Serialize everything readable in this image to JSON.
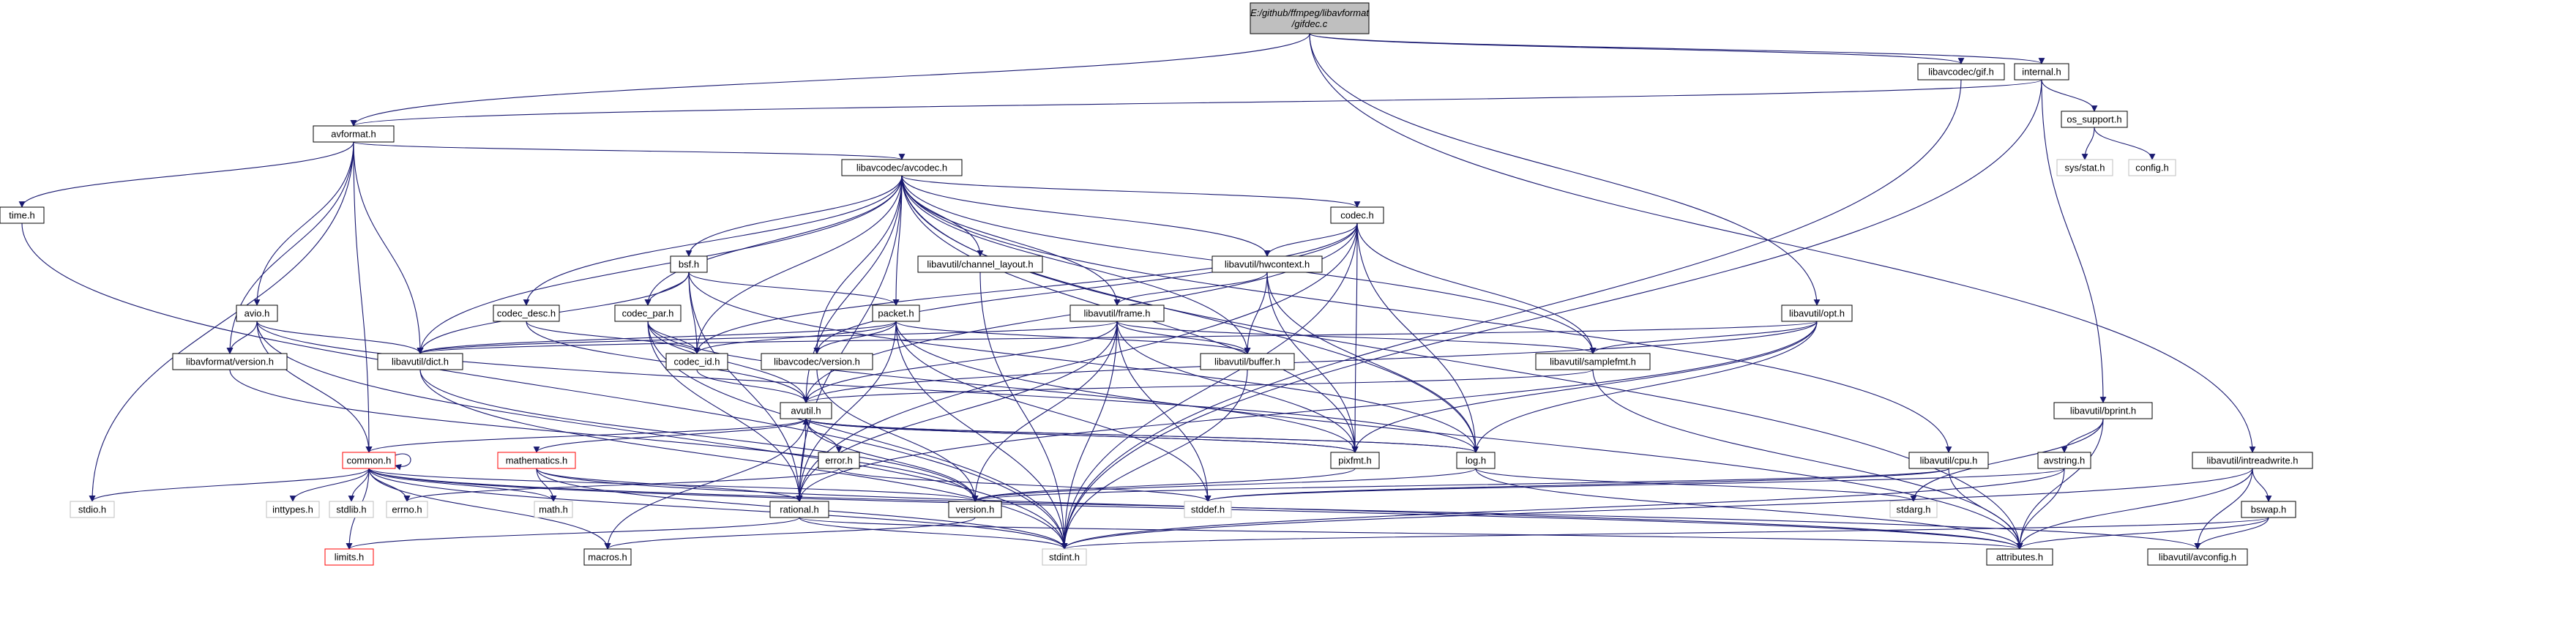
{
  "diagram": {
    "kind": "doxygen include dependency graph",
    "root": "gifdec",
    "edge_color": "#191970",
    "nodes": [
      {
        "id": "gifdec",
        "lines": [
          "E:/github/ffmpeg/libavformat",
          "/gifdec.c"
        ],
        "style": "root"
      },
      {
        "id": "avformat",
        "lines": [
          "avformat.h"
        ],
        "style": "normal"
      },
      {
        "id": "gifh",
        "lines": [
          "libavcodec/gif.h"
        ],
        "style": "normal"
      },
      {
        "id": "internal",
        "lines": [
          "internal.h"
        ],
        "style": "normal"
      },
      {
        "id": "os_support",
        "lines": [
          "os_support.h"
        ],
        "style": "normal"
      },
      {
        "id": "sysstat",
        "lines": [
          "sys/stat.h"
        ],
        "style": "gray"
      },
      {
        "id": "config",
        "lines": [
          "config.h"
        ],
        "style": "gray"
      },
      {
        "id": "time",
        "lines": [
          "time.h"
        ],
        "style": "normal"
      },
      {
        "id": "avcodec",
        "lines": [
          "libavcodec/avcodec.h"
        ],
        "style": "normal"
      },
      {
        "id": "codec",
        "lines": [
          "codec.h"
        ],
        "style": "normal"
      },
      {
        "id": "bsf",
        "lines": [
          "bsf.h"
        ],
        "style": "normal"
      },
      {
        "id": "chlayout",
        "lines": [
          "libavutil/channel_layout.h"
        ],
        "style": "normal"
      },
      {
        "id": "hwcontext",
        "lines": [
          "libavutil/hwcontext.h"
        ],
        "style": "normal"
      },
      {
        "id": "avio",
        "lines": [
          "avio.h"
        ],
        "style": "normal"
      },
      {
        "id": "codec_desc",
        "lines": [
          "codec_desc.h"
        ],
        "style": "normal"
      },
      {
        "id": "codec_par",
        "lines": [
          "codec_par.h"
        ],
        "style": "normal"
      },
      {
        "id": "packet",
        "lines": [
          "packet.h"
        ],
        "style": "normal"
      },
      {
        "id": "frame",
        "lines": [
          "libavutil/frame.h"
        ],
        "style": "normal"
      },
      {
        "id": "opt",
        "lines": [
          "libavutil/opt.h"
        ],
        "style": "normal"
      },
      {
        "id": "lfversion",
        "lines": [
          "libavformat/version.h"
        ],
        "style": "normal"
      },
      {
        "id": "dict",
        "lines": [
          "libavutil/dict.h"
        ],
        "style": "normal"
      },
      {
        "id": "codec_id",
        "lines": [
          "codec_id.h"
        ],
        "style": "normal"
      },
      {
        "id": "lcversion",
        "lines": [
          "libavcodec/version.h"
        ],
        "style": "normal"
      },
      {
        "id": "buffer",
        "lines": [
          "libavutil/buffer.h"
        ],
        "style": "normal"
      },
      {
        "id": "samplefmt",
        "lines": [
          "libavutil/samplefmt.h"
        ],
        "style": "normal"
      },
      {
        "id": "bprint",
        "lines": [
          "libavutil/bprint.h"
        ],
        "style": "normal"
      },
      {
        "id": "intreadwrite",
        "lines": [
          "libavutil/intreadwrite.h"
        ],
        "style": "normal"
      },
      {
        "id": "avutil",
        "lines": [
          "avutil.h"
        ],
        "style": "normal"
      },
      {
        "id": "common",
        "lines": [
          "common.h"
        ],
        "style": "red"
      },
      {
        "id": "mathematics",
        "lines": [
          "mathematics.h"
        ],
        "style": "red"
      },
      {
        "id": "error",
        "lines": [
          "error.h"
        ],
        "style": "normal"
      },
      {
        "id": "pixfmt",
        "lines": [
          "pixfmt.h"
        ],
        "style": "normal"
      },
      {
        "id": "log",
        "lines": [
          "log.h"
        ],
        "style": "normal"
      },
      {
        "id": "cpu",
        "lines": [
          "libavutil/cpu.h"
        ],
        "style": "normal"
      },
      {
        "id": "avstring",
        "lines": [
          "avstring.h"
        ],
        "style": "normal"
      },
      {
        "id": "stdio",
        "lines": [
          "stdio.h"
        ],
        "style": "gray"
      },
      {
        "id": "inttypes",
        "lines": [
          "inttypes.h"
        ],
        "style": "gray"
      },
      {
        "id": "stdlib",
        "lines": [
          "stdlib.h"
        ],
        "style": "gray"
      },
      {
        "id": "errno",
        "lines": [
          "errno.h"
        ],
        "style": "gray"
      },
      {
        "id": "math",
        "lines": [
          "math.h"
        ],
        "style": "gray"
      },
      {
        "id": "rational",
        "lines": [
          "rational.h"
        ],
        "style": "normal"
      },
      {
        "id": "version",
        "lines": [
          "version.h"
        ],
        "style": "normal"
      },
      {
        "id": "stddef",
        "lines": [
          "stddef.h"
        ],
        "style": "gray"
      },
      {
        "id": "stdarg",
        "lines": [
          "stdarg.h"
        ],
        "style": "gray"
      },
      {
        "id": "bswap",
        "lines": [
          "bswap.h"
        ],
        "style": "normal"
      },
      {
        "id": "limits",
        "lines": [
          "limits.h"
        ],
        "style": "red"
      },
      {
        "id": "macros",
        "lines": [
          "macros.h"
        ],
        "style": "normal"
      },
      {
        "id": "stdint",
        "lines": [
          "stdint.h"
        ],
        "style": "gray"
      },
      {
        "id": "attributes",
        "lines": [
          "attributes.h"
        ],
        "style": "normal"
      },
      {
        "id": "avconfig",
        "lines": [
          "libavutil/avconfig.h"
        ],
        "style": "normal"
      }
    ],
    "edges": [
      [
        "gifdec",
        "avformat"
      ],
      [
        "gifdec",
        "gifh"
      ],
      [
        "gifdec",
        "internal"
      ],
      [
        "gifdec",
        "opt"
      ],
      [
        "gifdec",
        "intreadwrite"
      ],
      [
        "internal",
        "avformat"
      ],
      [
        "internal",
        "os_support"
      ],
      [
        "internal",
        "bprint"
      ],
      [
        "internal",
        "stdint"
      ],
      [
        "os_support",
        "sysstat"
      ],
      [
        "os_support",
        "config"
      ],
      [
        "gifh",
        "stdint"
      ],
      [
        "avformat",
        "time"
      ],
      [
        "avformat",
        "stdio"
      ],
      [
        "avformat",
        "avcodec"
      ],
      [
        "avformat",
        "avio"
      ],
      [
        "avformat",
        "lfversion"
      ],
      [
        "avformat",
        "dict"
      ],
      [
        "avformat",
        "common"
      ],
      [
        "time",
        "stdint"
      ],
      [
        "avcodec",
        "codec"
      ],
      [
        "avcodec",
        "bsf"
      ],
      [
        "avcodec",
        "chlayout"
      ],
      [
        "avcodec",
        "hwcontext"
      ],
      [
        "avcodec",
        "codec_desc"
      ],
      [
        "avcodec",
        "codec_par"
      ],
      [
        "avcodec",
        "packet"
      ],
      [
        "avcodec",
        "frame"
      ],
      [
        "avcodec",
        "dict"
      ],
      [
        "avcodec",
        "codec_id"
      ],
      [
        "avcodec",
        "lcversion"
      ],
      [
        "avcodec",
        "buffer"
      ],
      [
        "avcodec",
        "samplefmt"
      ],
      [
        "avcodec",
        "avutil"
      ],
      [
        "avcodec",
        "log"
      ],
      [
        "avcodec",
        "pixfmt"
      ],
      [
        "avcodec",
        "rational"
      ],
      [
        "avcodec",
        "cpu"
      ],
      [
        "avcodec",
        "attributes"
      ],
      [
        "codec",
        "hwcontext"
      ],
      [
        "codec",
        "lcversion"
      ],
      [
        "codec",
        "codec_id"
      ],
      [
        "codec",
        "samplefmt"
      ],
      [
        "codec",
        "avutil"
      ],
      [
        "codec",
        "log"
      ],
      [
        "codec",
        "pixfmt"
      ],
      [
        "codec",
        "rational"
      ],
      [
        "codec",
        "stdint"
      ],
      [
        "bsf",
        "codec_par"
      ],
      [
        "bsf",
        "packet"
      ],
      [
        "bsf",
        "dict"
      ],
      [
        "bsf",
        "codec_id"
      ],
      [
        "bsf",
        "log"
      ],
      [
        "bsf",
        "rational"
      ],
      [
        "chlayout",
        "stdint"
      ],
      [
        "hwcontext",
        "frame"
      ],
      [
        "hwcontext",
        "buffer"
      ],
      [
        "hwcontext",
        "pixfmt"
      ],
      [
        "hwcontext",
        "log"
      ],
      [
        "avio",
        "dict"
      ],
      [
        "avio",
        "lfversion"
      ],
      [
        "avio",
        "common"
      ],
      [
        "avio",
        "log"
      ],
      [
        "avio",
        "stdint"
      ],
      [
        "codec_desc",
        "codec_id"
      ],
      [
        "codec_desc",
        "avutil"
      ],
      [
        "codec_par",
        "codec_id"
      ],
      [
        "codec_par",
        "avutil"
      ],
      [
        "codec_par",
        "pixfmt"
      ],
      [
        "codec_par",
        "rational"
      ],
      [
        "codec_par",
        "stdint"
      ],
      [
        "packet",
        "buffer"
      ],
      [
        "packet",
        "dict"
      ],
      [
        "packet",
        "lcversion"
      ],
      [
        "packet",
        "codec_id"
      ],
      [
        "packet",
        "rational"
      ],
      [
        "packet",
        "attributes"
      ],
      [
        "packet",
        "stddef"
      ],
      [
        "packet",
        "stdint"
      ],
      [
        "frame",
        "dict"
      ],
      [
        "frame",
        "buffer"
      ],
      [
        "frame",
        "samplefmt"
      ],
      [
        "frame",
        "avutil"
      ],
      [
        "frame",
        "pixfmt"
      ],
      [
        "frame",
        "rational"
      ],
      [
        "frame",
        "version"
      ],
      [
        "frame",
        "stddef"
      ],
      [
        "frame",
        "stdint"
      ],
      [
        "opt",
        "dict"
      ],
      [
        "opt",
        "samplefmt"
      ],
      [
        "opt",
        "avutil"
      ],
      [
        "opt",
        "log"
      ],
      [
        "opt",
        "pixfmt"
      ],
      [
        "opt",
        "rational"
      ],
      [
        "lfversion",
        "version"
      ],
      [
        "dict",
        "stdint"
      ],
      [
        "dict",
        "version"
      ],
      [
        "codec_id",
        "avutil"
      ],
      [
        "lcversion",
        "version"
      ],
      [
        "buffer",
        "stdint"
      ],
      [
        "samplefmt",
        "avutil"
      ],
      [
        "samplefmt",
        "attributes"
      ],
      [
        "bprint",
        "avstring"
      ],
      [
        "bprint",
        "attributes"
      ],
      [
        "bprint",
        "stdarg"
      ],
      [
        "intreadwrite",
        "bswap"
      ],
      [
        "intreadwrite",
        "attributes"
      ],
      [
        "intreadwrite",
        "avconfig"
      ],
      [
        "intreadwrite",
        "stdint"
      ],
      [
        "avutil",
        "common"
      ],
      [
        "avutil",
        "mathematics"
      ],
      [
        "avutil",
        "error"
      ],
      [
        "avutil",
        "rational"
      ],
      [
        "avutil",
        "version"
      ],
      [
        "avutil",
        "macros"
      ],
      [
        "avutil",
        "log"
      ],
      [
        "avutil",
        "pixfmt"
      ],
      [
        "common",
        "stdio"
      ],
      [
        "common",
        "inttypes"
      ],
      [
        "common",
        "stdlib"
      ],
      [
        "common",
        "errno"
      ],
      [
        "common",
        "math"
      ],
      [
        "common",
        "limits"
      ],
      [
        "common",
        "attributes"
      ],
      [
        "common",
        "macros"
      ],
      [
        "common",
        "version"
      ],
      [
        "common",
        "avconfig"
      ],
      [
        "common",
        "stdint"
      ],
      [
        "common",
        "common"
      ],
      [
        "mathematics",
        "math"
      ],
      [
        "mathematics",
        "rational"
      ],
      [
        "mathematics",
        "stdint"
      ],
      [
        "mathematics",
        "attributes"
      ],
      [
        "mathematics",
        "intfloat"
      ],
      [
        "error",
        "errno"
      ],
      [
        "error",
        "stddef"
      ],
      [
        "pixfmt",
        "version"
      ],
      [
        "pixfmt",
        "avutil"
      ],
      [
        "log",
        "stdarg"
      ],
      [
        "log",
        "attributes"
      ],
      [
        "log",
        "version"
      ],
      [
        "log",
        "avutil"
      ],
      [
        "cpu",
        "stddef"
      ],
      [
        "cpu",
        "version"
      ],
      [
        "cpu",
        "attributes"
      ],
      [
        "avstring",
        "stddef"
      ],
      [
        "avstring",
        "stdint"
      ],
      [
        "avstring",
        "attributes"
      ],
      [
        "rational",
        "stdint"
      ],
      [
        "rational",
        "limits"
      ],
      [
        "rational",
        "attributes"
      ],
      [
        "version",
        "macros"
      ],
      [
        "bswap",
        "stdint"
      ],
      [
        "bswap",
        "attributes"
      ],
      [
        "bswap",
        "avconfig"
      ]
    ]
  }
}
